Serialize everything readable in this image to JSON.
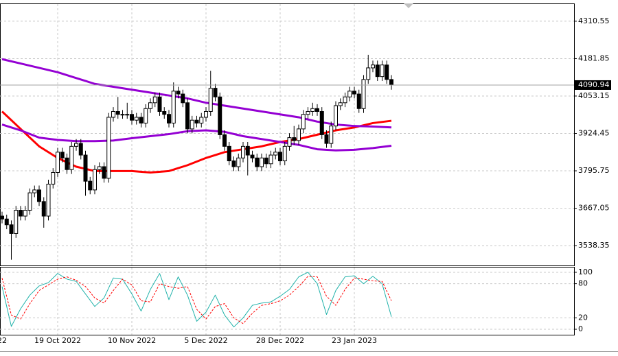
{
  "chart_data": [
    {
      "type": "candlestick",
      "categories": [
        "22",
        null,
        null,
        null,
        null,
        null,
        null,
        null,
        null,
        null,
        null,
        null,
        "19 Oct 2022",
        null,
        null,
        null,
        null,
        null,
        null,
        null,
        null,
        null,
        null,
        null,
        null,
        null,
        null,
        null,
        "10 Nov 2022",
        null,
        null,
        null,
        null,
        null,
        null,
        null,
        null,
        null,
        null,
        null,
        null,
        null,
        null,
        null,
        "5 Dec 2022",
        null,
        null,
        null,
        null,
        null,
        null,
        null,
        null,
        null,
        null,
        null,
        null,
        null,
        null,
        null,
        "28 Dec 2022",
        null,
        null,
        null,
        null,
        null,
        null,
        null,
        null,
        null,
        null,
        null,
        null,
        null,
        null,
        null,
        "23 Jan 2023",
        null,
        null,
        null,
        null,
        null,
        null,
        null,
        null
      ],
      "open": [
        3640,
        3630,
        3610,
        3580,
        3660,
        3640,
        3660,
        3720,
        3730,
        3690,
        3640,
        3750,
        3790,
        3860,
        3840,
        3800,
        3880,
        3890,
        3850,
        3760,
        3730,
        3800,
        3810,
        3770,
        3980,
        4000,
        3990,
        3990,
        3990,
        3970,
        3980,
        3960,
        4010,
        4030,
        4050,
        4000,
        3990,
        3960,
        4070,
        4060,
        4030,
        3940,
        3970,
        3960,
        3980,
        4000,
        4080,
        4050,
        3920,
        3880,
        3830,
        3810,
        3840,
        3880,
        3850,
        3840,
        3810,
        3840,
        3820,
        3850,
        3860,
        3830,
        3880,
        3910,
        3900,
        3940,
        3990,
        4000,
        4010,
        4000,
        3920,
        3890,
        3950,
        4020,
        4030,
        4050,
        4070,
        4060,
        4010,
        4110,
        4150,
        4160,
        4120,
        4160,
        4110
      ],
      "high": [
        3655,
        3645,
        3625,
        3675,
        3675,
        3675,
        3735,
        3745,
        3745,
        3705,
        3765,
        3805,
        3875,
        3875,
        3855,
        3895,
        3905,
        3905,
        3865,
        3775,
        3815,
        3825,
        3825,
        3995,
        4015,
        4050,
        4005,
        4030,
        4005,
        3995,
        3995,
        4025,
        4045,
        4065,
        4065,
        4015,
        4005,
        4100,
        4085,
        4075,
        4045,
        3985,
        3985,
        3995,
        4015,
        4140,
        4095,
        4065,
        3935,
        3895,
        3845,
        3855,
        3895,
        3895,
        3865,
        3855,
        3855,
        3855,
        3865,
        3875,
        3875,
        3895,
        3925,
        3950,
        3955,
        4005,
        4015,
        4030,
        4025,
        4015,
        3935,
        3965,
        4035,
        4045,
        4065,
        4085,
        4085,
        4075,
        4125,
        4195,
        4175,
        4175,
        4175,
        4175,
        4125
      ],
      "low": [
        3615,
        3595,
        3490,
        3565,
        3625,
        3625,
        3645,
        3705,
        3675,
        3600,
        3625,
        3735,
        3775,
        3825,
        3785,
        3785,
        3865,
        3835,
        3710,
        3715,
        3715,
        3785,
        3755,
        3755,
        3965,
        3975,
        3975,
        3975,
        3955,
        3955,
        3945,
        3945,
        3995,
        4015,
        3985,
        3975,
        3945,
        3945,
        4045,
        4015,
        3925,
        3925,
        3945,
        3945,
        3965,
        3985,
        4035,
        3905,
        3865,
        3815,
        3795,
        3795,
        3825,
        3780,
        3825,
        3795,
        3795,
        3805,
        3805,
        3835,
        3815,
        3815,
        3865,
        3885,
        3885,
        3925,
        3975,
        3985,
        3985,
        3905,
        3875,
        3875,
        3935,
        4005,
        4015,
        4035,
        4045,
        3995,
        3995,
        4095,
        4135,
        4105,
        4105,
        4095,
        4075
      ],
      "close": [
        3630,
        3610,
        3580,
        3660,
        3640,
        3660,
        3720,
        3730,
        3690,
        3640,
        3750,
        3790,
        3860,
        3840,
        3800,
        3880,
        3890,
        3850,
        3760,
        3730,
        3800,
        3810,
        3770,
        3980,
        4000,
        3990,
        3990,
        3990,
        3970,
        3980,
        3960,
        4010,
        4030,
        4050,
        4000,
        3990,
        3960,
        4070,
        4060,
        4030,
        3940,
        3970,
        3960,
        3980,
        4000,
        4080,
        4050,
        3920,
        3880,
        3830,
        3810,
        3840,
        3880,
        3850,
        3840,
        3810,
        3840,
        3820,
        3850,
        3860,
        3830,
        3880,
        3910,
        3900,
        3940,
        3990,
        4000,
        4010,
        4000,
        3920,
        3890,
        3950,
        4020,
        4030,
        4050,
        4070,
        4060,
        4010,
        4110,
        4150,
        4160,
        4120,
        4160,
        4110,
        4090.94
      ],
      "series": [
        {
          "color": "#ff0000",
          "x": [
            0,
            4,
            8,
            12,
            16,
            20,
            24,
            28,
            32,
            36,
            40,
            44,
            48,
            52,
            56,
            60,
            64,
            68,
            72,
            76,
            80,
            84
          ],
          "values": [
            4000,
            3940,
            3880,
            3840,
            3810,
            3795,
            3795,
            3795,
            3790,
            3795,
            3815,
            3840,
            3860,
            3870,
            3880,
            3895,
            3905,
            3920,
            3935,
            3945,
            3960,
            3968
          ]
        },
        {
          "color": "#9400d3",
          "x": [
            0,
            4,
            8,
            12,
            16,
            20,
            24,
            28,
            32,
            36,
            40,
            44,
            48,
            52,
            56,
            60,
            64,
            68,
            72,
            76,
            80,
            84
          ],
          "values": [
            4180,
            4165,
            4150,
            4135,
            4115,
            4095,
            4085,
            4075,
            4065,
            4055,
            4045,
            4030,
            4020,
            4010,
            4000,
            3990,
            3980,
            3965,
            3955,
            3950,
            3948,
            3945
          ]
        },
        {
          "color": "#9400d3",
          "x": [
            0,
            4,
            8,
            12,
            16,
            20,
            24,
            28,
            32,
            36,
            40,
            44,
            48,
            52,
            56,
            60,
            64,
            68,
            72,
            76,
            80,
            84
          ],
          "values": [
            3955,
            3935,
            3910,
            3902,
            3898,
            3898,
            3900,
            3908,
            3915,
            3922,
            3932,
            3935,
            3930,
            3915,
            3905,
            3895,
            3885,
            3870,
            3866,
            3868,
            3874,
            3882
          ]
        }
      ],
      "ylim": [
        3470.1,
        4369.4
      ],
      "yticks": [
        4310.55,
        4181.85,
        4053.15,
        3924.45,
        3795.75,
        3667.05,
        3538.35
      ],
      "grid": true
    },
    {
      "type": "line",
      "series": [
        {
          "color": "#20b2aa",
          "x": [
            0,
            2,
            4,
            6,
            8,
            10,
            12,
            14,
            16,
            18,
            20,
            22,
            24,
            26,
            28,
            30,
            32,
            34,
            36,
            38,
            40,
            42,
            44,
            46,
            48,
            50,
            52,
            54,
            56,
            58,
            60,
            62,
            64,
            66,
            68,
            70,
            72,
            74,
            76,
            78,
            80,
            82,
            84
          ],
          "values": [
            75,
            5,
            36,
            60,
            76,
            82,
            98,
            88,
            84,
            62,
            40,
            55,
            90,
            88,
            62,
            32,
            70,
            98,
            52,
            92,
            60,
            14,
            30,
            60,
            25,
            4,
            20,
            42,
            46,
            48,
            58,
            70,
            92,
            100,
            80,
            26,
            68,
            92,
            94,
            80,
            93,
            80,
            22
          ]
        },
        {
          "color": "#ff0000",
          "dashed": true,
          "x": [
            0,
            2,
            4,
            6,
            8,
            10,
            12,
            14,
            16,
            18,
            20,
            22,
            24,
            26,
            28,
            30,
            32,
            34,
            36,
            38,
            40,
            42,
            44,
            46,
            48,
            50,
            52,
            54,
            56,
            58,
            60,
            62,
            64,
            66,
            68,
            70,
            72,
            74,
            76,
            78,
            80,
            82,
            84
          ],
          "values": [
            90,
            25,
            18,
            45,
            68,
            78,
            88,
            92,
            86,
            75,
            55,
            46,
            68,
            88,
            78,
            50,
            48,
            80,
            75,
            72,
            75,
            35,
            18,
            40,
            45,
            20,
            10,
            28,
            42,
            45,
            50,
            60,
            75,
            93,
            92,
            58,
            42,
            70,
            90,
            88,
            85,
            84,
            50
          ]
        }
      ],
      "ylim": [
        -9.6,
        108.4
      ],
      "yticks": [
        100,
        80,
        20,
        0
      ],
      "grid": true
    }
  ]
}
